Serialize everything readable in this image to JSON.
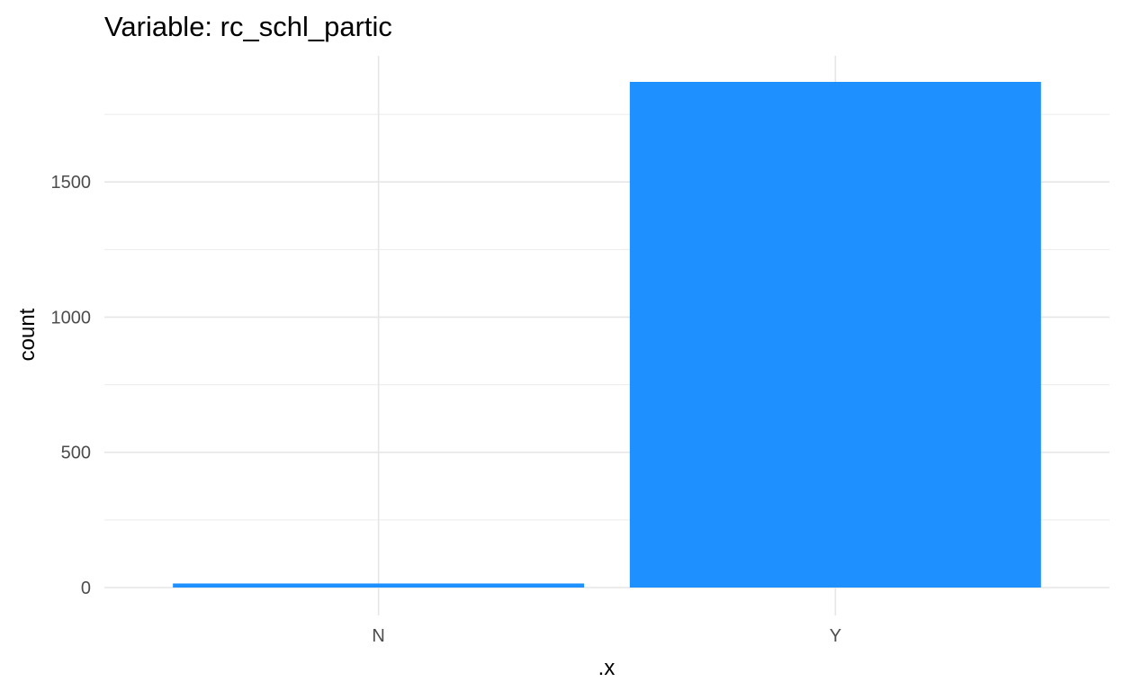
{
  "chart_data": {
    "type": "bar",
    "title": "Variable: rc_schl_partic",
    "xlabel": ".x",
    "ylabel": "count",
    "categories": [
      "N",
      "Y"
    ],
    "values": [
      15,
      1870
    ],
    "ylim": [
      0,
      1870
    ],
    "y_ticks": [
      0,
      500,
      1000,
      1500
    ],
    "y_tick_labels": [
      "0",
      "500",
      "1000",
      "1500"
    ],
    "bar_color": "#1E90FF",
    "grid": true,
    "legend": "none"
  }
}
